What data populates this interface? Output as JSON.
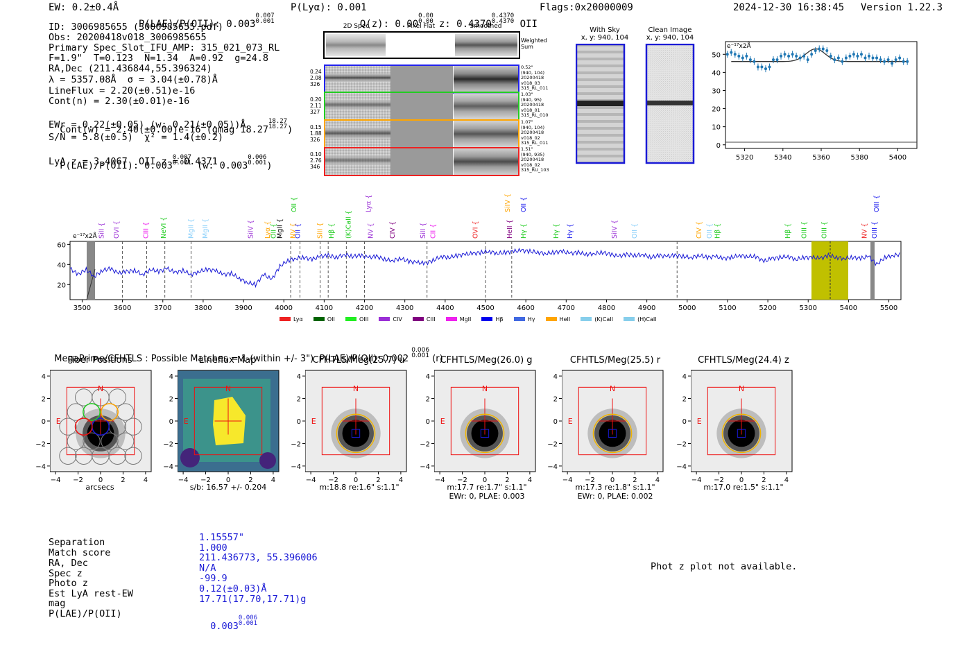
{
  "header": {
    "ew": "EW: 0.2±0.4Å",
    "plae_label": "P(LAE)/P(OII): 0.003",
    "plae_hi": "0.007",
    "plae_lo": "0.001",
    "plya": "P(Lyα): 0.001",
    "qz_label": "Q(z): 0.00",
    "qz_hi": "0.00",
    "qz_lo": "0.00",
    "z_label": "z: 0.4370",
    "z_hi": "0.4370",
    "z_lo": "0.4370",
    "z_line": "OII",
    "flags": "Flags:0x20000009",
    "timestamp": "2024-12-30 16:38:45",
    "version": "Version 1.22.3"
  },
  "info": {
    "id": "ID: 3006985655 (3006985655.pdf)",
    "obs": "Obs: 20200418v018_3006985655",
    "slot": "Primary Spec_Slot_IFU_AMP: 315_021_073_RL",
    "f_line": "F=1.9\"  T=0.123  N=1.34  A=0.92  g=24.8",
    "radec": "RA,Dec (211.436844,55.396324)",
    "lambda": "λ = 5357.08Å  σ = 3.04(±0.78)Å",
    "lineflux": "LineFlux = 2.20(±0.51)e-16",
    "contn": "Cont(n) = 2.30(±0.01)e-16",
    "contw_label": "Cont(w) = 2.40(±0.00)e-16 (gmag 18.27",
    "contw_hi": "18.27",
    "contw_lo": "18.27",
    "contw_end": ")",
    "ewr": "EWr = 0.22(±0.05) (w: 0.21(±0.05))Å",
    "sn": "S/N = 5.8(±0.5)  χ² = 1.4(±0.2)",
    "plae_label": "P(LAE)/P(OII): 0.003",
    "plae_hi": "0.007",
    "plae_lo": "0.001",
    "plae_w_label": "(w: 0.003",
    "plae_w_hi": "0.006",
    "plae_w_lo": "0.001",
    "plae_w_end": ")",
    "lya_z": "LyA z = 3.4067  OII z = 0.4371"
  },
  "spec2d": {
    "col_headers": [
      "2D Spec",
      "Pixel Flat",
      "Smoothed"
    ],
    "weighted_sum": [
      "Weighted",
      "Sum"
    ],
    "rows": [
      {
        "left": [
          "0.24",
          "2.08",
          "326"
        ],
        "right": [
          "0.52\"",
          "(940, 104)",
          "20200418",
          "v018_03",
          "315_RL_011"
        ],
        "color": "#2222ee"
      },
      {
        "left": [
          "0.20",
          "2.11",
          "327"
        ],
        "right": [
          "1.03\"",
          "(940, 95)",
          "20200418",
          "v018_01",
          "315_RL_010"
        ],
        "color": "#22cc22"
      },
      {
        "left": [
          "0.15",
          "1.88",
          "326"
        ],
        "right": [
          "1.07\"",
          "(940, 104)",
          "20200418",
          "v018_02",
          "315_RL_011"
        ],
        "color": "#ffa500"
      },
      {
        "left": [
          "0.10",
          "2.76",
          "346"
        ],
        "right": [
          "1.51\"",
          "(940, 935)",
          "20200418",
          "v018_02",
          "315_RU_103"
        ],
        "color": "#ee2222"
      }
    ]
  },
  "sky": {
    "with_sky": [
      "With Sky",
      "x, y: 940, 104"
    ],
    "clean": [
      "Clean Image",
      "x, y: 940, 104"
    ]
  },
  "zoom_plot": {
    "unit": "e⁻¹⁷x2Å",
    "yticks": [
      "50",
      "40",
      "30",
      "20",
      "10",
      "0"
    ],
    "xticks": [
      "5320",
      "5340",
      "5360",
      "5380",
      "5400"
    ]
  },
  "full_spec": {
    "unit": "e⁻¹⁷x2Å",
    "yticks": [
      "60",
      "40",
      "20"
    ],
    "xticks": [
      "3500",
      "3600",
      "3700",
      "3800",
      "3900",
      "4000",
      "4100",
      "4200",
      "4300",
      "4400",
      "4500",
      "4600",
      "4700",
      "4800",
      "4900",
      "5000",
      "5100",
      "5200",
      "5300",
      "5400",
      "5500"
    ],
    "lines_top": [
      {
        "label": "OII",
        "color": "#22cc22"
      },
      {
        "label": "Lyα",
        "color": "#9a2fd6"
      },
      {
        "label": "SiIV",
        "color": "#ffa500"
      },
      {
        "label": "OII",
        "color": "#2222ee"
      },
      {
        "label": "OIII",
        "color": "#2222ee"
      }
    ],
    "lines_mid": [
      {
        "label": "SiII",
        "color": "#9a2fd6"
      },
      {
        "label": "OVI",
        "color": "#9a2fd6"
      },
      {
        "label": "CIII",
        "color": "#ee22ee"
      },
      {
        "label": "NeVI",
        "color": "#22cc22"
      },
      {
        "label": "MgII",
        "color": "#87cefa"
      },
      {
        "label": "MgII",
        "color": "#87cefa"
      },
      {
        "label": "SiIV",
        "color": "#9a2fd6"
      },
      {
        "label": "Lyα",
        "color": "#ffa500"
      },
      {
        "label": "OII",
        "color": "#22cc22"
      },
      {
        "label": "MgII",
        "color": "#000000"
      },
      {
        "label": "NV",
        "color": "#ffa500"
      },
      {
        "label": "OII",
        "color": "#2222ee"
      },
      {
        "label": "SiII",
        "color": "#ffa500"
      },
      {
        "label": "Hβ",
        "color": "#22cc22"
      },
      {
        "label": "(K)CaII",
        "color": "#22cc22"
      },
      {
        "label": "NV",
        "color": "#9a2fd6"
      },
      {
        "label": "CIV",
        "color": "#800080"
      },
      {
        "label": "SiII",
        "color": "#9a2fd6"
      },
      {
        "label": "CII",
        "color": "#ee22ee"
      },
      {
        "label": "OVI",
        "color": "#ee2222"
      },
      {
        "label": "HeII",
        "color": "#800080"
      },
      {
        "label": "Hγ",
        "color": "#22cc22"
      },
      {
        "label": "Hγ",
        "color": "#22cc22"
      },
      {
        "label": "Hγ",
        "color": "#2222ee"
      },
      {
        "label": "SiIV",
        "color": "#9a2fd6"
      },
      {
        "label": "OII",
        "color": "#87cefa"
      },
      {
        "label": "CIV",
        "color": "#ffa500"
      },
      {
        "label": "OII",
        "color": "#87cefa"
      },
      {
        "label": "Hβ",
        "color": "#22cc22"
      },
      {
        "label": "Hβ",
        "color": "#22cc22"
      },
      {
        "label": "OIII",
        "color": "#22cc22"
      },
      {
        "label": "OIII",
        "color": "#22cc22"
      },
      {
        "label": "NV",
        "color": "#ee2222"
      },
      {
        "label": "OIII",
        "color": "#2222ee"
      }
    ],
    "legend": [
      {
        "label": "Lyα",
        "color": "#ee2222"
      },
      {
        "label": "OII",
        "color": "#006400"
      },
      {
        "label": "OIII",
        "color": "#22ee22"
      },
      {
        "label": "CIV",
        "color": "#9a2fd6"
      },
      {
        "label": "CIII",
        "color": "#800080"
      },
      {
        "label": "MgII",
        "color": "#ee22ee"
      },
      {
        "label": "Hβ",
        "color": "#0000ee"
      },
      {
        "label": "Hγ",
        "color": "#4169e1"
      },
      {
        "label": "HeII",
        "color": "#ffa500"
      },
      {
        "label": "(K)CaII",
        "color": "#87ceeb"
      },
      {
        "label": "(H)CaII",
        "color": "#87ceeb"
      }
    ]
  },
  "matches": {
    "title_label": "MegaPrime/CFHTLS : Possible Matches = 1 (within +/- 3\")  P(LAE)/P(OII): 0.002",
    "title_hi": "0.006",
    "title_lo": "0.001",
    "title_end": "(r)"
  },
  "cutouts": [
    {
      "title": "Fiber Positions",
      "cap1": "arcsecs",
      "cap2": ""
    },
    {
      "title": "Lineflux Map",
      "cap1": "s/b: 16.57 +/- 0.204",
      "cap2": ""
    },
    {
      "title": "CFHTLS/Meg(25.7) u",
      "cap1": "m:18.8  re:1.6\"  s:1.1\"",
      "cap2": ""
    },
    {
      "title": "CFHTLS/Meg(26.0) g",
      "cap1": "m:17.7  re:1.7\"  s:1.1\"",
      "cap2": "EWr: 0, PLAE: 0.003"
    },
    {
      "title": "CFHTLS/Meg(25.5) r",
      "cap1": "m:17.3  re:1.8\"  s:1.1\"",
      "cap2": "EWr: 0, PLAE: 0.002"
    },
    {
      "title": "CFHTLS/Meg(24.4) z",
      "cap1": "m:17.0  re:1.5\"  s:1.1\"",
      "cap2": ""
    }
  ],
  "cutout_axes": {
    "yticks": [
      "4",
      "2",
      "0",
      "−2",
      "−4"
    ],
    "xticks": [
      "−4",
      "−2",
      "0",
      "2",
      "4"
    ],
    "north": "N",
    "east": "E"
  },
  "match_table": {
    "labels": [
      "Separation",
      "Match score",
      "RA, Dec",
      "Spec z",
      "Photo z",
      "Est LyA rest-EW",
      "mag",
      "P(LAE)/P(OII)"
    ],
    "values": [
      "1.15557\"",
      "1.000",
      "211.436773, 55.396006",
      "N/A",
      "-99.9",
      "0.12(±0.03)Å",
      "17.71(17.70,17.71)g",
      "0.003"
    ],
    "plae_hi": "0.006",
    "plae_lo": "0.001"
  },
  "photz_note": "Phot z plot not available.",
  "chart_data": [
    {
      "type": "line",
      "title": "zoomed emission line",
      "ylabel": "e-17 x2Å",
      "xlim": [
        5310,
        5410
      ],
      "ylim": [
        -2,
        57
      ],
      "series": [
        {
          "name": "flux",
          "x": [
            5311,
            5313,
            5315,
            5317,
            5319,
            5321,
            5323,
            5325,
            5327,
            5329,
            5331,
            5333,
            5335,
            5337,
            5339,
            5341,
            5343,
            5345,
            5347,
            5349,
            5351,
            5353,
            5355,
            5357,
            5359,
            5361,
            5363,
            5365,
            5367,
            5369,
            5371,
            5373,
            5375,
            5377,
            5379,
            5381,
            5383,
            5385,
            5387,
            5389,
            5391,
            5393,
            5395,
            5397,
            5399,
            5401,
            5403,
            5405
          ],
          "y": [
            50,
            51,
            50,
            49,
            48,
            49,
            47,
            46,
            43,
            43,
            42,
            43,
            47,
            47,
            49,
            50,
            49,
            50,
            49,
            48,
            49,
            47,
            50,
            52,
            53,
            53,
            52,
            49,
            47,
            48,
            46,
            48,
            49,
            50,
            49,
            50,
            48,
            49,
            48,
            48,
            47,
            46,
            47,
            45,
            47,
            48,
            46,
            46
          ]
        }
      ]
    },
    {
      "type": "line",
      "title": "full spectrum",
      "ylabel": "e-17 x2Å",
      "xlim": [
        3470,
        5530
      ],
      "ylim": [
        5,
        63
      ],
      "series": [
        {
          "name": "flux",
          "x": [
            3470,
            3490,
            3510,
            3530,
            3550,
            3570,
            3590,
            3610,
            3630,
            3650,
            3670,
            3690,
            3710,
            3730,
            3750,
            3770,
            3790,
            3810,
            3830,
            3850,
            3870,
            3890,
            3910,
            3930,
            3950,
            3970,
            3990,
            4010,
            4030,
            4050,
            4070,
            4090,
            4110,
            4130,
            4150,
            4170,
            4190,
            4210,
            4230,
            4250,
            4270,
            4290,
            4310,
            4330,
            4350,
            4370,
            4390,
            4410,
            4430,
            4450,
            4470,
            4490,
            4510,
            4530,
            4550,
            4570,
            4590,
            4610,
            4630,
            4650,
            4670,
            4690,
            4710,
            4730,
            4750,
            4770,
            4790,
            4810,
            4830,
            4850,
            4870,
            4890,
            4910,
            4930,
            4950,
            4970,
            4990,
            5010,
            5030,
            5050,
            5070,
            5090,
            5110,
            5130,
            5150,
            5170,
            5190,
            5210,
            5230,
            5250,
            5270,
            5290,
            5310,
            5330,
            5350,
            5370,
            5390,
            5410,
            5430,
            5450,
            5470,
            5490,
            5510,
            5530
          ],
          "y": [
            36,
            30,
            35,
            28,
            34,
            36,
            31,
            33,
            34,
            30,
            35,
            33,
            36,
            32,
            34,
            30,
            33,
            35,
            34,
            30,
            31,
            26,
            22,
            20,
            30,
            25,
            38,
            44,
            46,
            47,
            45,
            48,
            49,
            47,
            50,
            48,
            49,
            47,
            48,
            45,
            44,
            46,
            43,
            42,
            41,
            44,
            48,
            47,
            49,
            50,
            51,
            52,
            53,
            51,
            52,
            53,
            54,
            53,
            52,
            51,
            52,
            53,
            51,
            52,
            50,
            51,
            52,
            50,
            48,
            50,
            49,
            50,
            47,
            49,
            48,
            49,
            48,
            47,
            49,
            47,
            48,
            46,
            47,
            49,
            48,
            48,
            43,
            46,
            47,
            48,
            45,
            47,
            47,
            46,
            49,
            47,
            46,
            47,
            46,
            48,
            40,
            47,
            49,
            50
          ]
        }
      ]
    }
  ]
}
